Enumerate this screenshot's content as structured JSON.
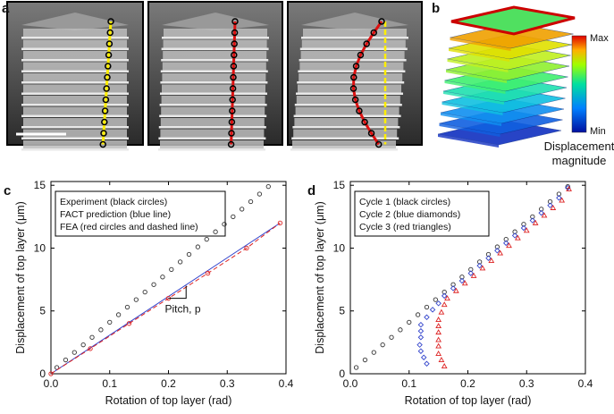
{
  "panels": {
    "a": "a",
    "b": "b",
    "c": "c",
    "d": "d"
  },
  "colorbar": {
    "max": "Max",
    "min": "Min",
    "title_line1": "Displacement",
    "title_line2": "magnitude"
  },
  "chart_data": [
    {
      "type": "scatter",
      "xlabel": "Rotation of top layer (rad)",
      "ylabel": "Displacement of top layer (μm)",
      "xlim": [
        0,
        0.4
      ],
      "ylim": [
        0,
        15.3
      ],
      "xticks": [
        {
          "value": 0,
          "label": "0.0"
        },
        0.1,
        0.2,
        0.3,
        0.4
      ],
      "yticks": [
        0,
        5,
        10,
        15
      ],
      "annotation": "Pitch, p",
      "series": [
        {
          "name": "Experiment (black circles)",
          "color": "#333333",
          "marker": "circle",
          "x": [
            0.01,
            0.025,
            0.04,
            0.055,
            0.07,
            0.085,
            0.1,
            0.115,
            0.13,
            0.145,
            0.16,
            0.175,
            0.19,
            0.205,
            0.22,
            0.235,
            0.25,
            0.265,
            0.28,
            0.295,
            0.31,
            0.325,
            0.34,
            0.355,
            0.37
          ],
          "values": [
            0.5,
            1.1,
            1.7,
            2.3,
            2.9,
            3.5,
            4.1,
            4.7,
            5.3,
            5.9,
            6.5,
            7.1,
            7.7,
            8.3,
            8.9,
            9.5,
            10.1,
            10.7,
            11.3,
            11.9,
            12.5,
            13.1,
            13.7,
            14.3,
            14.9
          ]
        },
        {
          "name": "FACT prediction (blue line)",
          "color": "#3344cc",
          "marker": "none",
          "line": "solid",
          "x": [
            0,
            0.39
          ],
          "values": [
            0,
            12
          ]
        },
        {
          "name": "FEA (red circles and dashed line)",
          "color": "#dd2222",
          "marker": "circle",
          "line": "dashed",
          "x": [
            0,
            0.067,
            0.133,
            0.2,
            0.267,
            0.333,
            0.39
          ],
          "values": [
            0,
            2,
            4,
            6,
            8,
            10,
            12
          ]
        }
      ]
    },
    {
      "type": "scatter",
      "xlabel": "Rotation of top layer (rad)",
      "ylabel": "Displacement of top layer (μm)",
      "xlim": [
        0,
        0.4
      ],
      "ylim": [
        0,
        15.3
      ],
      "xticks": [
        {
          "value": 0,
          "label": "0.0"
        },
        0.1,
        0.2,
        0.3,
        0.4
      ],
      "yticks": [
        0,
        5,
        10,
        15
      ],
      "series": [
        {
          "name": "Cycle 1 (black circles)",
          "color": "#333333",
          "marker": "circle",
          "x": [
            0.01,
            0.025,
            0.04,
            0.055,
            0.07,
            0.085,
            0.1,
            0.115,
            0.13,
            0.145,
            0.16,
            0.175,
            0.19,
            0.205,
            0.22,
            0.235,
            0.25,
            0.265,
            0.28,
            0.295,
            0.31,
            0.325,
            0.34,
            0.355,
            0.37
          ],
          "values": [
            0.5,
            1.1,
            1.7,
            2.3,
            2.9,
            3.5,
            4.1,
            4.7,
            5.3,
            5.9,
            6.5,
            7.1,
            7.7,
            8.3,
            8.9,
            9.5,
            10.1,
            10.7,
            11.3,
            11.9,
            12.5,
            13.1,
            13.7,
            14.3,
            14.9
          ]
        },
        {
          "name": "Cycle 2 (blue diamonds)",
          "color": "#3344cc",
          "marker": "diamond",
          "x": [
            0.13,
            0.125,
            0.12,
            0.118,
            0.12,
            0.12,
            0.12,
            0.13,
            0.14,
            0.15,
            0.16,
            0.175,
            0.19,
            0.205,
            0.22,
            0.235,
            0.25,
            0.265,
            0.28,
            0.295,
            0.31,
            0.325,
            0.34,
            0.355,
            0.37
          ],
          "values": [
            0.8,
            1.3,
            1.8,
            2.3,
            2.9,
            3.4,
            3.9,
            4.5,
            5.1,
            5.6,
            6.2,
            6.8,
            7.4,
            8.0,
            8.6,
            9.2,
            9.8,
            10.4,
            11.0,
            11.6,
            12.2,
            12.8,
            13.4,
            14.0,
            14.8
          ]
        },
        {
          "name": "Cycle 3 (red triangles)",
          "color": "#dd2222",
          "marker": "triangle",
          "x": [
            0.16,
            0.155,
            0.15,
            0.15,
            0.15,
            0.15,
            0.15,
            0.15,
            0.155,
            0.16,
            0.165,
            0.18,
            0.195,
            0.21,
            0.225,
            0.24,
            0.255,
            0.27,
            0.285,
            0.3,
            0.315,
            0.33,
            0.345,
            0.36,
            0.372
          ],
          "values": [
            0.6,
            1.1,
            1.6,
            2.2,
            2.7,
            3.3,
            3.8,
            4.3,
            4.9,
            5.5,
            6.0,
            6.6,
            7.2,
            7.8,
            8.4,
            9.0,
            9.6,
            10.2,
            10.8,
            11.4,
            12.0,
            12.6,
            13.2,
            13.8,
            14.7
          ]
        }
      ]
    }
  ]
}
